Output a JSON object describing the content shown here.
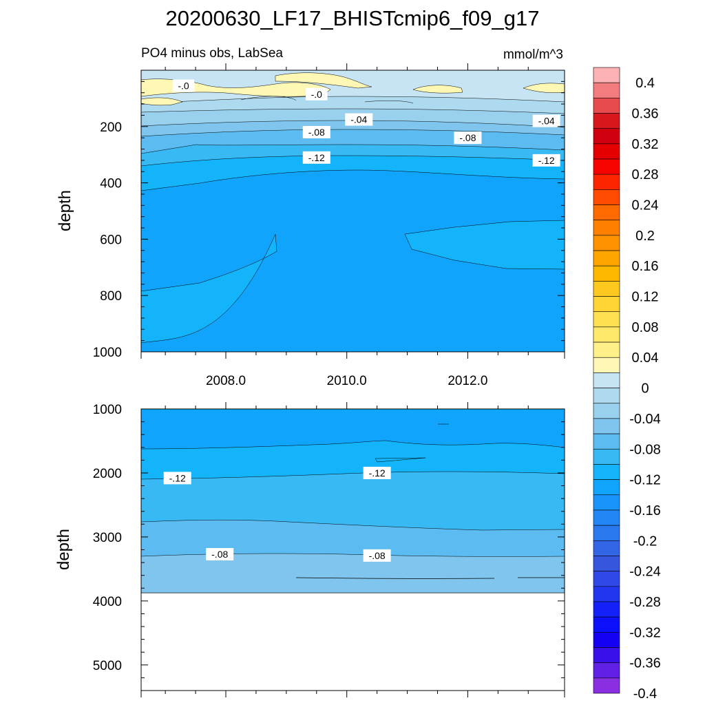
{
  "figure": {
    "title": "20200630_LF17_BHISTcmip6_f09_g17",
    "subtitle_left": "PO4 minus obs, LabSea",
    "subtitle_right": "mmol/m^3"
  },
  "chart_data": [
    {
      "type": "heatmap",
      "panel": "upper",
      "description_source": "filled contour of PO4 model minus observations",
      "xlim": [
        2006.6,
        2013.6
      ],
      "ylim": [
        0,
        1000
      ],
      "y_reversed": true,
      "xticks": [
        2008.0,
        2010.0,
        2012.0
      ],
      "xtick_labels": [
        "2008.0",
        "2010.0",
        "2012.0"
      ],
      "yticks": [
        200,
        400,
        600,
        800,
        1000
      ],
      "ytick_labels": [
        "200",
        "400",
        "600",
        "800",
        "1000"
      ],
      "ylabel": "depth",
      "contour_labels": [
        {
          "text": "-.0",
          "x": 2007.3,
          "y": 55
        },
        {
          "text": "-.0",
          "x": 2009.5,
          "y": 85
        },
        {
          "text": "-.04",
          "x": 2010.2,
          "y": 175
        },
        {
          "text": "-.04",
          "x": 2013.3,
          "y": 180
        },
        {
          "text": "-.08",
          "x": 2009.5,
          "y": 220
        },
        {
          "text": "-.08",
          "x": 2012.0,
          "y": 240
        },
        {
          "text": "-.12",
          "x": 2009.5,
          "y": 310
        },
        {
          "text": "-.12",
          "x": 2013.3,
          "y": 320
        }
      ]
    },
    {
      "type": "heatmap",
      "panel": "lower",
      "xlim": [
        2006.6,
        2013.6
      ],
      "ylim": [
        1000,
        5400
      ],
      "y_reversed": true,
      "yticks": [
        1000,
        2000,
        3000,
        4000,
        5000
      ],
      "ytick_labels": [
        "1000",
        "2000",
        "3000",
        "4000",
        "5000"
      ],
      "ylabel": "depth",
      "data_bottom_depth": 3850,
      "contour_labels": [
        {
          "text": "-.12",
          "x": 2007.2,
          "y": 2080
        },
        {
          "text": "-.12",
          "x": 2010.5,
          "y": 2000
        },
        {
          "text": "-.08",
          "x": 2007.9,
          "y": 3270
        },
        {
          "text": "-.08",
          "x": 2010.5,
          "y": 3290
        }
      ]
    }
  ],
  "colorbar": {
    "tick_labels": [
      "0.4",
      "0.36",
      "0.32",
      "0.28",
      "0.24",
      "0.2",
      "0.16",
      "0.12",
      "0.08",
      "0.04",
      "0",
      "-0.04",
      "-0.08",
      "-0.12",
      "-0.16",
      "-0.2",
      "-0.24",
      "-0.28",
      "-0.32",
      "-0.36",
      "-0.4"
    ],
    "colors": [
      "#FCB1B4",
      "#F27C7E",
      "#E84B4E",
      "#D8171C",
      "#D00010",
      "#E40000",
      "#F80200",
      "#FF2400",
      "#FF4A00",
      "#FF6B00",
      "#FF8000",
      "#FF9200",
      "#FFA500",
      "#FFB800",
      "#FFC81E",
      "#FFD536",
      "#FFE050",
      "#FFE86A",
      "#FFF08A",
      "#FFF8B4",
      "#C6E4F4",
      "#AEDAF0",
      "#98D0EE",
      "#7FC5EE",
      "#5CBBF0",
      "#38B9F4",
      "#14B4FA",
      "#10A4FC",
      "#1894FA",
      "#2286F4",
      "#2A78EE",
      "#3266E6",
      "#3656DE",
      "#3148E8",
      "#2236F0",
      "#1420F8",
      "#0C10FC",
      "#1600F4",
      "#3A10EA",
      "#6020E6",
      "#8A2EE2"
    ]
  },
  "colors": {
    "upper_bands": [
      "#FFF8B4",
      "#C6E4F4",
      "#AEDAF0",
      "#98D0EE",
      "#7FC5EE",
      "#5CBBF0",
      "#38B9F4",
      "#14B4FA",
      "#10A4FC"
    ],
    "lower_bands": [
      "#10A4FC",
      "#14B4FA",
      "#38B9F4",
      "#5CBBF0",
      "#7FC5EE",
      "#98D0EE"
    ]
  }
}
